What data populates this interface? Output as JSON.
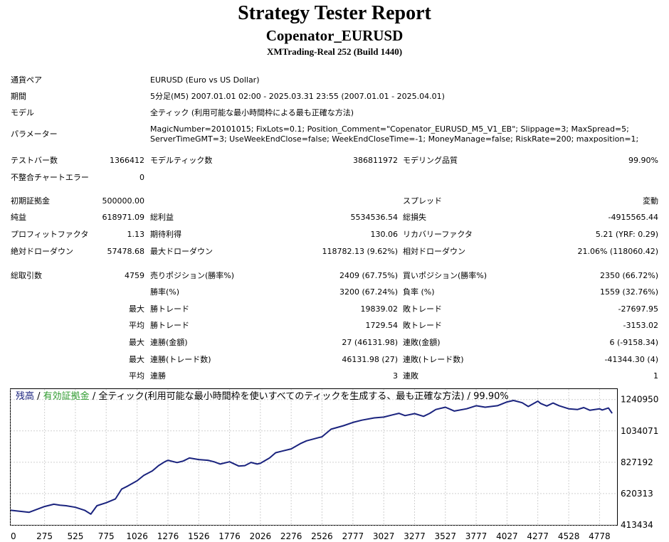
{
  "report": {
    "title": "Strategy Tester Report",
    "subtitle": "Copenator_EURUSD",
    "build": "XMTrading-Real 252 (Build 1440)"
  },
  "settings": {
    "symbol_label": "通貨ペア",
    "symbol_value": "EURUSD (Euro vs US Dollar)",
    "period_label": "期間",
    "period_value": "5分足(M5) 2007.01.01 02:00 - 2025.03.31 23:55 (2007.01.01 - 2025.04.01)",
    "model_label": "モデル",
    "model_value": "全ティック (利用可能な最小時間枠による最も正確な方法)",
    "params_label": "パラメーター",
    "params_line1": "MagicNumber=20101015; FixLots=0.1; Position_Comment=\"Copenator_EURUSD_M5_V1_EB\"; Slippage=3; MaxSpread=5;",
    "params_line2": "ServerTimeGMT=3; UseWeekEndClose=false; WeekEndCloseTime=-1; MoneyManage=false; RiskRate=200; maxposition=1;"
  },
  "stats": {
    "bars_label": "テストバー数",
    "bars_value": "1366412",
    "ticks_label": "モデルティック数",
    "ticks_value": "386811972",
    "quality_label": "モデリング品質",
    "quality_value": "99.90%",
    "mismatch_label": "不整合チャートエラー",
    "mismatch_value": "0",
    "deposit_label": "初期証拠金",
    "deposit_value": "500000.00",
    "spread_label": "スプレッド",
    "spread_value": "変動",
    "net_label": "純益",
    "net_value": "618971.09",
    "gross_profit_label": "総利益",
    "gross_profit_value": "5534536.54",
    "gross_loss_label": "総損失",
    "gross_loss_value": "-4915565.44",
    "pf_label": "プロフィットファクタ",
    "pf_value": "1.13",
    "payoff_label": "期待利得",
    "payoff_value": "130.06",
    "recovery_label": "リカバリーファクタ",
    "recovery_value": "5.21 (YRF: 0.29)",
    "abs_dd_label": "絶対ドローダウン",
    "abs_dd_value": "57478.68",
    "max_dd_label": "最大ドローダウン",
    "max_dd_value": "118782.13 (9.62%)",
    "rel_dd_label": "相対ドローダウン",
    "rel_dd_value": "21.06% (118060.42)",
    "total_label": "総取引数",
    "total_value": "4759",
    "short_label": "売りポジション(勝率%)",
    "short_value": "2409 (67.75%)",
    "long_label": "買いポジション(勝率%)",
    "long_value": "2350 (66.72%)",
    "winrate_label": "勝率(%)",
    "winrate_value": "3200 (67.24%)",
    "lossrate_label": "負率 (%)",
    "lossrate_value": "1559 (32.76%)",
    "max_prefix": "最大",
    "avg_prefix": "平均",
    "win_trade_label": "勝トレード",
    "loss_trade_label": "敗トレード",
    "largest_win_value": "19839.02",
    "largest_loss_value": "-27697.95",
    "avg_win_value": "1729.54",
    "avg_loss_value": "-3153.02",
    "cons_win_amt_label": "連勝(金額)",
    "cons_win_amt_value": "27 (46131.98)",
    "cons_loss_amt_label": "連敗(金額)",
    "cons_loss_amt_value": "6 (-9158.34)",
    "cons_win_trades_label": "連勝(トレード数)",
    "cons_win_trades_value": "46131.98 (27)",
    "cons_loss_trades_label": "連敗(トレード数)",
    "cons_loss_trades_value": "-41344.30 (4)",
    "avg_cons_win_label": "連勝",
    "avg_cons_win_value": "3",
    "avg_cons_loss_label": "連敗",
    "avg_cons_loss_value": "1"
  },
  "chart_legend": {
    "balance": "残高",
    "sep1": " / ",
    "equity": "有効証拠金",
    "sep2": " / ",
    "model": "全ティック(利用可能な最小時間枠を使いすべてのティックを生成する、最も正確な方法)",
    "sep3": " / ",
    "quality": "99.90%"
  },
  "colors": {
    "balance_line": "#1a237e",
    "legend_balance": "#1a237e",
    "legend_equity": "#2e9b2e",
    "grid": "#d0d0d0"
  },
  "chart_data": {
    "type": "line",
    "title": "",
    "xlabel": "",
    "ylabel": "",
    "x_ticks": [
      "0",
      "275",
      "525",
      "775",
      "1026",
      "1276",
      "1526",
      "1776",
      "2026",
      "2276",
      "2526",
      "2777",
      "3027",
      "3277",
      "3527",
      "3777",
      "4027",
      "4277",
      "4528",
      "4778"
    ],
    "y_ticks": [
      "413434",
      "620313",
      "827192",
      "1034071",
      "1240950"
    ],
    "xlim": [
      0,
      4920
    ],
    "ylim": [
      413434,
      1309910
    ],
    "grid": true,
    "series": [
      {
        "x": [
          0,
          150,
          275,
          350,
          400,
          450,
          525,
          600,
          650,
          700,
          775,
          850,
          900,
          950,
          1026,
          1080,
          1150,
          1200,
          1250,
          1276,
          1350,
          1400,
          1450,
          1526,
          1600,
          1650,
          1700,
          1776,
          1850,
          1900,
          1950,
          2000,
          2026,
          2100,
          2150,
          2200,
          2276,
          2350,
          2400,
          2500,
          2526,
          2600,
          2700,
          2777,
          2850,
          2950,
          3027,
          3100,
          3150,
          3200,
          3277,
          3350,
          3400,
          3450,
          3527,
          3600,
          3700,
          3777,
          3850,
          3950,
          4027,
          4080,
          4150,
          4200,
          4277,
          4300,
          4350,
          4400,
          4450,
          4528,
          4600,
          4650,
          4700,
          4778,
          4800,
          4850,
          4880
        ],
        "values": [
          510000,
          497000,
          535000,
          550000,
          544000,
          540000,
          530000,
          510000,
          485000,
          540000,
          560000,
          585000,
          650000,
          670000,
          705000,
          740000,
          770000,
          805000,
          830000,
          840000,
          825000,
          835000,
          855000,
          845000,
          840000,
          830000,
          815000,
          830000,
          802000,
          805000,
          826000,
          815000,
          820000,
          855000,
          890000,
          900000,
          915000,
          950000,
          968000,
          990000,
          995000,
          1045000,
          1068000,
          1090000,
          1105000,
          1120000,
          1125000,
          1140000,
          1150000,
          1135000,
          1148000,
          1130000,
          1150000,
          1175000,
          1190000,
          1165000,
          1180000,
          1200000,
          1190000,
          1200000,
          1225000,
          1235000,
          1220000,
          1195000,
          1230000,
          1215000,
          1198000,
          1218000,
          1200000,
          1180000,
          1175000,
          1188000,
          1170000,
          1180000,
          1172000,
          1185000,
          1150000
        ]
      }
    ]
  }
}
